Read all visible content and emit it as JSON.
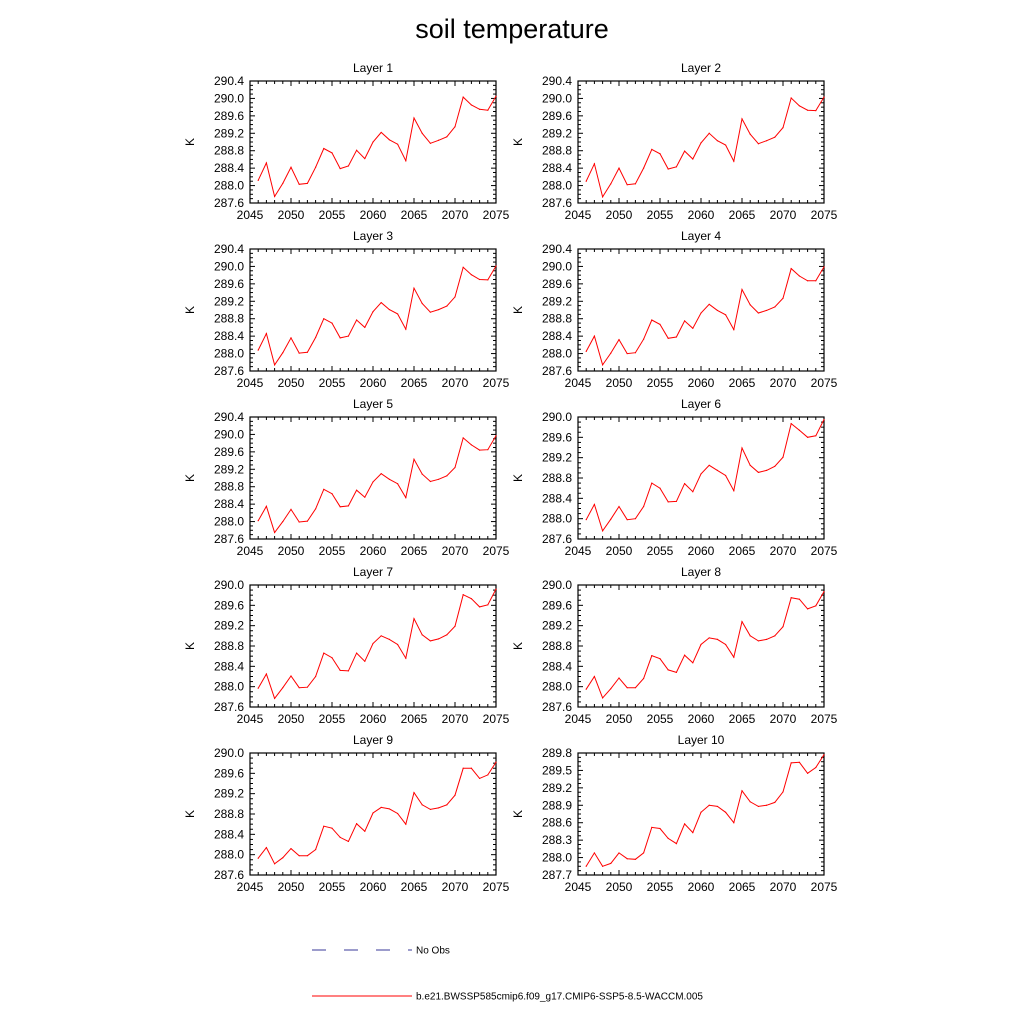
{
  "title": "soil temperature",
  "chart_data": {
    "type": "line",
    "title": "soil temperature",
    "xlabel": "",
    "ylabel": "K",
    "xlim": [
      2045,
      2075
    ],
    "x_ticks": [
      2045,
      2050,
      2055,
      2060,
      2065,
      2070,
      2075
    ],
    "x": [
      2046,
      2047,
      2048,
      2049,
      2050,
      2051,
      2052,
      2053,
      2054,
      2055,
      2056,
      2057,
      2058,
      2059,
      2060,
      2061,
      2062,
      2063,
      2064,
      2065,
      2066,
      2067,
      2068,
      2069,
      2070,
      2071,
      2072,
      2073,
      2074,
      2075
    ],
    "legend": [
      {
        "label": "No Obs",
        "style": "dashed",
        "color": "#3a3a9a"
      },
      {
        "label": "b.e21.BWSSP585cmip6.f09_g17.CMIP6-SSP5-8.5-WACCM.005",
        "style": "solid",
        "color": "#ff0000"
      }
    ],
    "panels": [
      {
        "title": "Layer 1",
        "ylim": [
          287.6,
          290.4
        ],
        "yticks": [
          "287.6",
          "288.0",
          "288.4",
          "288.8",
          "289.2",
          "289.6",
          "290.0",
          "290.4"
        ],
        "values": [
          288.12,
          288.52,
          287.75,
          288.05,
          288.42,
          288.03,
          288.05,
          288.42,
          288.85,
          288.75,
          288.39,
          288.45,
          288.81,
          288.62,
          289.0,
          289.22,
          289.05,
          288.95,
          288.57,
          289.55,
          289.2,
          288.97,
          289.04,
          289.12,
          289.35,
          290.03,
          289.85,
          289.75,
          289.73,
          290.05
        ]
      },
      {
        "title": "Layer 2",
        "ylim": [
          287.6,
          290.4
        ],
        "yticks": [
          "287.6",
          "288.0",
          "288.4",
          "288.8",
          "289.2",
          "289.6",
          "290.0",
          "290.4"
        ],
        "values": [
          288.1,
          288.5,
          287.74,
          288.04,
          288.4,
          288.02,
          288.04,
          288.4,
          288.83,
          288.73,
          288.38,
          288.43,
          288.79,
          288.61,
          288.98,
          289.2,
          289.03,
          288.93,
          288.56,
          289.53,
          289.18,
          288.96,
          289.03,
          289.11,
          289.33,
          290.01,
          289.83,
          289.73,
          289.72,
          290.03
        ]
      },
      {
        "title": "Layer 3",
        "ylim": [
          287.6,
          290.4
        ],
        "yticks": [
          "287.6",
          "288.0",
          "288.4",
          "288.8",
          "289.2",
          "289.6",
          "290.0",
          "290.4"
        ],
        "values": [
          288.08,
          288.46,
          287.74,
          288.02,
          288.36,
          288.01,
          288.03,
          288.37,
          288.8,
          288.7,
          288.36,
          288.4,
          288.77,
          288.6,
          288.96,
          289.17,
          289.01,
          288.91,
          288.56,
          289.5,
          289.15,
          288.95,
          289.01,
          289.09,
          289.3,
          289.98,
          289.81,
          289.7,
          289.69,
          290.01
        ]
      },
      {
        "title": "Layer 4",
        "ylim": [
          287.6,
          290.4
        ],
        "yticks": [
          "287.6",
          "288.0",
          "288.4",
          "288.8",
          "289.2",
          "289.6",
          "290.0",
          "290.4"
        ],
        "values": [
          288.05,
          288.4,
          287.74,
          288.01,
          288.32,
          288.0,
          288.02,
          288.33,
          288.77,
          288.67,
          288.35,
          288.38,
          288.75,
          288.58,
          288.93,
          289.13,
          288.99,
          288.89,
          288.55,
          289.47,
          289.12,
          288.93,
          288.99,
          289.07,
          289.27,
          289.95,
          289.78,
          289.67,
          289.67,
          289.99
        ]
      },
      {
        "title": "Layer 5",
        "ylim": [
          287.6,
          290.4
        ],
        "yticks": [
          "287.6",
          "288.0",
          "288.4",
          "288.8",
          "289.2",
          "289.6",
          "290.0",
          "290.4"
        ],
        "values": [
          288.02,
          288.35,
          287.75,
          288.0,
          288.28,
          287.99,
          288.01,
          288.29,
          288.74,
          288.64,
          288.34,
          288.36,
          288.72,
          288.56,
          288.91,
          289.1,
          288.97,
          288.87,
          288.55,
          289.43,
          289.09,
          288.92,
          288.97,
          289.05,
          289.24,
          289.92,
          289.76,
          289.64,
          289.65,
          289.97
        ]
      },
      {
        "title": "Layer 6",
        "ylim": [
          287.6,
          290.0
        ],
        "yticks": [
          "287.6",
          "288.0",
          "288.4",
          "288.8",
          "289.2",
          "289.6",
          "290.0"
        ],
        "values": [
          287.98,
          288.28,
          287.76,
          287.99,
          288.24,
          287.98,
          288.0,
          288.24,
          288.7,
          288.6,
          288.33,
          288.34,
          288.69,
          288.53,
          288.88,
          289.05,
          288.95,
          288.85,
          288.55,
          289.39,
          289.05,
          288.91,
          288.95,
          289.03,
          289.21,
          289.87,
          289.74,
          289.6,
          289.63,
          289.95
        ]
      },
      {
        "title": "Layer 7",
        "ylim": [
          287.6,
          290.0
        ],
        "yticks": [
          "287.6",
          "288.0",
          "288.4",
          "288.8",
          "289.2",
          "289.6",
          "290.0"
        ],
        "values": [
          287.97,
          288.25,
          287.77,
          287.98,
          288.21,
          287.98,
          287.99,
          288.2,
          288.66,
          288.57,
          288.32,
          288.31,
          288.66,
          288.5,
          288.85,
          289.0,
          288.93,
          288.83,
          288.56,
          289.34,
          289.02,
          288.9,
          288.94,
          289.02,
          289.19,
          289.81,
          289.73,
          289.57,
          289.61,
          289.92
        ]
      },
      {
        "title": "Layer 8",
        "ylim": [
          287.6,
          290.0
        ],
        "yticks": [
          "287.6",
          "288.0",
          "288.4",
          "288.8",
          "289.2",
          "289.6",
          "290.0"
        ],
        "values": [
          287.95,
          288.2,
          287.78,
          287.96,
          288.17,
          287.98,
          287.98,
          288.16,
          288.61,
          288.55,
          288.33,
          288.28,
          288.62,
          288.47,
          288.83,
          288.96,
          288.93,
          288.83,
          288.58,
          289.28,
          289.0,
          288.9,
          288.93,
          289.0,
          289.18,
          289.75,
          289.72,
          289.53,
          289.59,
          289.87
        ]
      },
      {
        "title": "Layer 9",
        "ylim": [
          287.6,
          290.0
        ],
        "yticks": [
          "287.6",
          "288.0",
          "288.4",
          "288.8",
          "289.2",
          "289.6",
          "290.0"
        ],
        "values": [
          287.93,
          288.14,
          287.82,
          287.94,
          288.12,
          287.98,
          287.98,
          288.1,
          288.56,
          288.52,
          288.34,
          288.26,
          288.61,
          288.46,
          288.82,
          288.93,
          288.9,
          288.81,
          288.6,
          289.22,
          288.98,
          288.89,
          288.92,
          288.98,
          289.17,
          289.7,
          289.7,
          289.5,
          289.57,
          289.82
        ]
      },
      {
        "title": "Layer 10",
        "ylim": [
          287.7,
          289.8
        ],
        "yticks": [
          "287.7",
          "288.0",
          "288.3",
          "288.6",
          "288.9",
          "289.2",
          "289.5",
          "289.8"
        ],
        "values": [
          287.85,
          288.08,
          287.85,
          287.9,
          288.08,
          287.98,
          287.97,
          288.08,
          288.52,
          288.5,
          288.33,
          288.24,
          288.58,
          288.43,
          288.78,
          288.9,
          288.88,
          288.78,
          288.6,
          289.15,
          288.96,
          288.88,
          288.9,
          288.95,
          289.13,
          289.63,
          289.64,
          289.45,
          289.55,
          289.77
        ]
      }
    ]
  }
}
